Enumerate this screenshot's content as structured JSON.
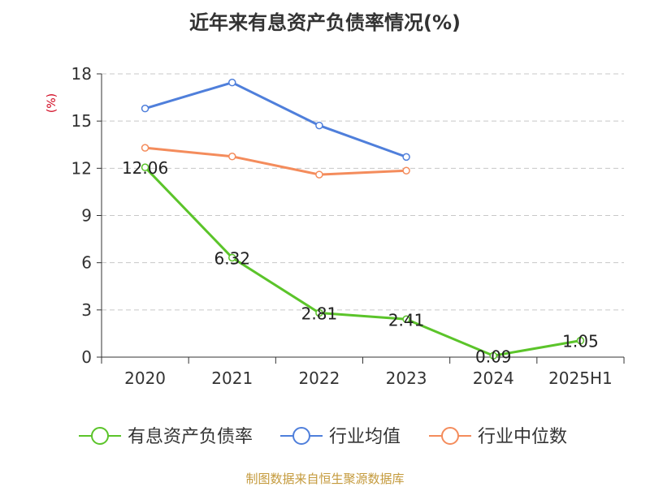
{
  "chart_data": {
    "type": "line",
    "title": "近年来有息资产负债率情况(%)",
    "ylabel": "(%)",
    "xlabel": "",
    "categories": [
      "2020",
      "2021",
      "2022",
      "2023",
      "2024",
      "2025H1"
    ],
    "ylim": [
      0,
      18
    ],
    "yticks": [
      "0",
      "3",
      "6",
      "9",
      "12",
      "15",
      "18"
    ],
    "grid": true,
    "legend_position": "bottom",
    "series": [
      {
        "name": "有息资产负债率",
        "color": "#5bc42a",
        "values": [
          12.06,
          6.32,
          2.81,
          2.41,
          0.09,
          1.05
        ],
        "labels": [
          "12.06",
          "6.32",
          "2.81",
          "2.41",
          "0.09",
          "1.05"
        ]
      },
      {
        "name": "行业均值",
        "color": "#4f7fdb",
        "values": [
          15.8,
          17.45,
          14.72,
          12.72,
          null,
          null
        ]
      },
      {
        "name": "行业中位数",
        "color": "#f48c5c",
        "values": [
          13.3,
          12.75,
          11.6,
          11.85,
          null,
          null
        ]
      }
    ]
  },
  "source": "制图数据来自恒生聚源数据库"
}
